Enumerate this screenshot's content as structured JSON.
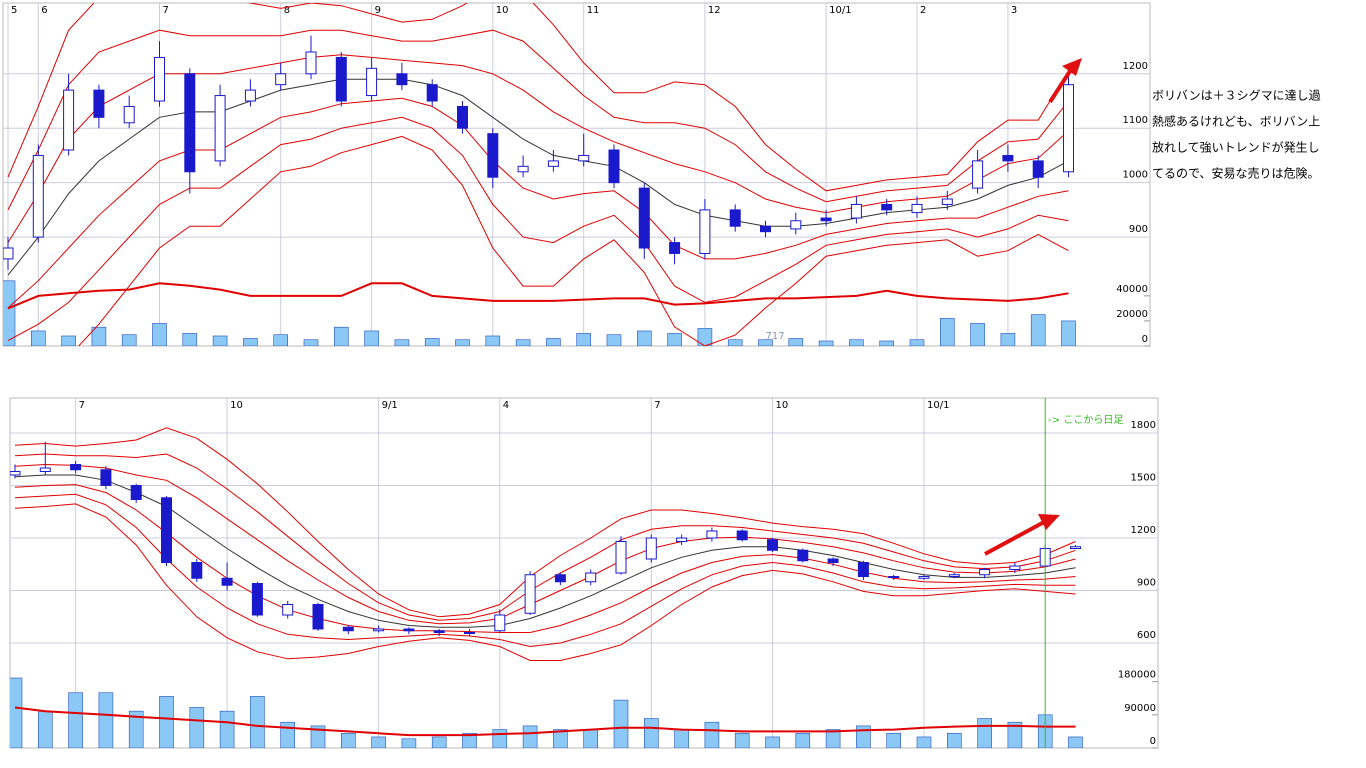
{
  "chart_data": [
    {
      "type": "candlestick",
      "categories": [
        "5",
        "6",
        null,
        null,
        null,
        "7",
        null,
        null,
        null,
        "8",
        null,
        null,
        "9",
        null,
        null,
        null,
        "10",
        null,
        null,
        "11",
        null,
        null,
        null,
        "12",
        null,
        null,
        null,
        "10/1",
        null,
        null,
        "2",
        null,
        null,
        "3",
        null,
        null
      ],
      "ylim": [
        700,
        1330
      ],
      "yticks": [
        900,
        1000,
        1100,
        1200
      ],
      "y2lim": [
        0,
        273600
      ],
      "y2ticks": [
        0,
        20000,
        40000
      ],
      "grid": true,
      "ohlc": {
        "up_color": "#ffffff",
        "down_color": "#1a1acc",
        "edge_color": "#1a1acc",
        "open": [
          860,
          900,
          1060,
          1170,
          1110,
          1150,
          1200,
          1040,
          1150,
          1180,
          1200,
          1230,
          1160,
          1200,
          1180,
          1140,
          1090,
          1020,
          1030,
          1040,
          1060,
          990,
          890,
          870,
          950,
          920,
          915,
          935,
          935,
          960,
          945,
          960,
          990,
          1050,
          1040,
          1020
        ],
        "high": [
          900,
          1070,
          1200,
          1180,
          1160,
          1260,
          1210,
          1180,
          1190,
          1220,
          1270,
          1240,
          1230,
          1220,
          1190,
          1150,
          1100,
          1050,
          1060,
          1090,
          1070,
          1000,
          900,
          970,
          960,
          930,
          945,
          950,
          975,
          970,
          975,
          985,
          1060,
          1070,
          1050,
          1200
        ],
        "low": [
          840,
          890,
          1050,
          1100,
          1100,
          1140,
          980,
          1030,
          1140,
          1170,
          1190,
          1140,
          1150,
          1170,
          1140,
          1090,
          990,
          1010,
          1020,
          1030,
          990,
          860,
          850,
          860,
          910,
          900,
          905,
          920,
          925,
          940,
          935,
          950,
          980,
          1020,
          990,
          1010
        ],
        "close": [
          880,
          1050,
          1170,
          1120,
          1140,
          1230,
          1020,
          1160,
          1170,
          1200,
          1240,
          1150,
          1210,
          1180,
          1150,
          1100,
          1010,
          1030,
          1040,
          1050,
          1000,
          880,
          870,
          950,
          920,
          910,
          930,
          930,
          960,
          950,
          960,
          970,
          1040,
          1040,
          1010,
          1180
        ]
      },
      "bands": [
        {
          "color": "#333333",
          "values": [
            830,
            900,
            980,
            1040,
            1080,
            1120,
            1130,
            1130,
            1150,
            1170,
            1180,
            1190,
            1190,
            1190,
            1180,
            1160,
            1120,
            1080,
            1050,
            1040,
            1030,
            1000,
            960,
            940,
            930,
            920,
            920,
            925,
            935,
            945,
            950,
            955,
            970,
            995,
            1010,
            1040
          ]
        },
        {
          "color": "#e00000",
          "values": [
            890,
            980,
            1080,
            1140,
            1170,
            1200,
            1200,
            1200,
            1210,
            1220,
            1230,
            1235,
            1230,
            1225,
            1220,
            1215,
            1200,
            1170,
            1130,
            1100,
            1075,
            1055,
            1035,
            1020,
            1000,
            970,
            955,
            945,
            955,
            965,
            970,
            975,
            1005,
            1035,
            1045,
            1095
          ]
        },
        {
          "color": "#e00000",
          "values": [
            950,
            1060,
            1180,
            1240,
            1260,
            1280,
            1270,
            1270,
            1270,
            1270,
            1280,
            1280,
            1270,
            1260,
            1260,
            1270,
            1280,
            1260,
            1210,
            1160,
            1120,
            1110,
            1110,
            1100,
            1070,
            1020,
            990,
            965,
            975,
            985,
            990,
            995,
            1040,
            1075,
            1080,
            1150
          ]
        },
        {
          "color": "#e00000",
          "values": [
            1010,
            1140,
            1280,
            1340,
            1350,
            1360,
            1340,
            1340,
            1330,
            1320,
            1330,
            1325,
            1310,
            1295,
            1300,
            1325,
            1360,
            1350,
            1290,
            1220,
            1165,
            1165,
            1185,
            1180,
            1140,
            1070,
            1025,
            985,
            995,
            1005,
            1010,
            1015,
            1075,
            1115,
            1115,
            1205
          ]
        },
        {
          "color": "#e00000",
          "values": [
            770,
            820,
            880,
            940,
            990,
            1040,
            1060,
            1060,
            1090,
            1120,
            1130,
            1145,
            1150,
            1155,
            1140,
            1105,
            1040,
            990,
            970,
            980,
            985,
            945,
            885,
            860,
            860,
            870,
            885,
            905,
            915,
            925,
            930,
            935,
            935,
            955,
            975,
            985
          ]
        },
        {
          "color": "#e00000",
          "values": [
            710,
            740,
            780,
            840,
            900,
            960,
            990,
            990,
            1030,
            1070,
            1080,
            1100,
            1110,
            1120,
            1100,
            1050,
            960,
            900,
            890,
            920,
            940,
            890,
            810,
            780,
            790,
            820,
            850,
            885,
            895,
            905,
            910,
            915,
            900,
            915,
            940,
            930
          ]
        },
        {
          "color": "#e00000",
          "values": [
            650,
            660,
            680,
            740,
            810,
            880,
            920,
            920,
            970,
            1020,
            1030,
            1055,
            1070,
            1085,
            1060,
            995,
            880,
            810,
            810,
            860,
            895,
            835,
            735,
            700,
            720,
            770,
            815,
            865,
            875,
            885,
            890,
            895,
            865,
            875,
            905,
            875
          ]
        }
      ],
      "volume": {
        "color": "#8cc8f5",
        "values": [
          52000,
          12000,
          8000,
          15000,
          9000,
          18000,
          10000,
          8000,
          6000,
          9000,
          5000,
          15000,
          12000,
          5000,
          6000,
          5000,
          8000,
          5000,
          6000,
          10000,
          9000,
          12000,
          10000,
          14000,
          5000,
          5000,
          6000,
          4000,
          5000,
          4000,
          5000,
          22000,
          18000,
          10000,
          25000,
          20000
        ]
      },
      "volume_ma": {
        "color": "#e00000",
        "values": [
          30000,
          40000,
          42000,
          44000,
          45000,
          50000,
          48000,
          45000,
          40000,
          40000,
          40000,
          40000,
          50000,
          50000,
          40000,
          38000,
          36000,
          36000,
          36000,
          37000,
          38000,
          38000,
          33000,
          34000,
          36000,
          38000,
          38000,
          39000,
          40000,
          44000,
          40000,
          38000,
          37000,
          36000,
          38000,
          42000
        ]
      },
      "annotations": [
        {
          "text": "717",
          "x": 25
        }
      ],
      "comment": [
        "ボリバンは＋３シグマに達し過",
        "熱感あるけれども、ボリバン上",
        "放れして強いトレンドが発生し",
        "てるので、安易な売りは危険。"
      ]
    },
    {
      "type": "candlestick",
      "categories": [
        null,
        null,
        "7",
        null,
        null,
        null,
        null,
        "10",
        null,
        null,
        null,
        null,
        "9/1",
        null,
        null,
        null,
        "4",
        null,
        null,
        null,
        null,
        "7",
        null,
        null,
        null,
        "10",
        null,
        null,
        null,
        null,
        "10/1",
        null,
        null,
        null,
        null,
        null
      ],
      "ylim": [
        0,
        2000
      ],
      "yticks": [
        600,
        900,
        1200,
        1500,
        1800
      ],
      "y2lim": [
        0,
        950000
      ],
      "y2ticks": [
        0,
        90000,
        180000
      ],
      "grid": true,
      "ohlc": {
        "up_color": "#ffffff",
        "down_color": "#1a1acc",
        "edge_color": "#1a1acc",
        "open": [
          1560,
          1580,
          1620,
          1590,
          1500,
          1430,
          1060,
          970,
          940,
          760,
          820,
          690,
          670,
          680,
          670,
          660,
          670,
          770,
          990,
          950,
          1000,
          1080,
          1180,
          1200,
          1240,
          1190,
          1130,
          1080,
          1060,
          980,
          970,
          980,
          990,
          1020,
          1040,
          1140
        ],
        "high": [
          1620,
          1750,
          1640,
          1610,
          1510,
          1440,
          1080,
          1060,
          950,
          840,
          830,
          700,
          700,
          690,
          680,
          680,
          790,
          1010,
          1000,
          1020,
          1210,
          1220,
          1220,
          1260,
          1250,
          1200,
          1140,
          1090,
          1070,
          990,
          990,
          1000,
          1030,
          1060,
          1160,
          1160
        ],
        "low": [
          1540,
          1560,
          1570,
          1480,
          1400,
          1040,
          950,
          900,
          750,
          740,
          670,
          650,
          660,
          650,
          640,
          640,
          660,
          760,
          930,
          930,
          990,
          1060,
          1160,
          1180,
          1180,
          1120,
          1060,
          1040,
          960,
          960,
          960,
          970,
          970,
          1000,
          1030,
          1140
        ],
        "close": [
          1580,
          1600,
          1590,
          1500,
          1420,
          1060,
          970,
          930,
          760,
          820,
          680,
          670,
          680,
          670,
          660,
          660,
          760,
          990,
          950,
          1000,
          1180,
          1200,
          1200,
          1240,
          1190,
          1130,
          1070,
          1060,
          980,
          980,
          980,
          990,
          1020,
          1040,
          1140,
          1150
        ]
      },
      "bands": [
        {
          "color": "#333333",
          "values": [
            1550,
            1560,
            1560,
            1530,
            1460,
            1380,
            1260,
            1140,
            1030,
            930,
            850,
            780,
            730,
            700,
            690,
            690,
            700,
            740,
            800,
            870,
            950,
            1030,
            1090,
            1130,
            1150,
            1150,
            1130,
            1100,
            1060,
            1020,
            990,
            975,
            975,
            985,
            1000,
            1030
          ]
        },
        {
          "color": "#e00000",
          "values": [
            1610,
            1620,
            1615,
            1600,
            1560,
            1530,
            1430,
            1310,
            1190,
            1070,
            960,
            860,
            780,
            730,
            710,
            715,
            740,
            820,
            900,
            980,
            1070,
            1140,
            1180,
            1200,
            1205,
            1195,
            1175,
            1150,
            1115,
            1070,
            1030,
            1005,
            1000,
            1010,
            1035,
            1080
          ]
        },
        {
          "color": "#e00000",
          "values": [
            1670,
            1680,
            1670,
            1670,
            1660,
            1680,
            1600,
            1480,
            1350,
            1210,
            1070,
            940,
            830,
            760,
            730,
            740,
            780,
            900,
            1000,
            1090,
            1190,
            1250,
            1270,
            1270,
            1260,
            1240,
            1220,
            1200,
            1170,
            1120,
            1070,
            1035,
            1025,
            1035,
            1070,
            1130
          ]
        },
        {
          "color": "#e00000",
          "values": [
            1730,
            1740,
            1725,
            1740,
            1760,
            1830,
            1770,
            1650,
            1510,
            1350,
            1180,
            1020,
            880,
            790,
            750,
            765,
            820,
            980,
            1100,
            1200,
            1310,
            1360,
            1360,
            1340,
            1315,
            1285,
            1265,
            1250,
            1225,
            1170,
            1110,
            1065,
            1050,
            1060,
            1105,
            1180
          ]
        },
        {
          "color": "#e00000",
          "values": [
            1490,
            1500,
            1505,
            1460,
            1360,
            1230,
            1090,
            970,
            870,
            790,
            740,
            700,
            680,
            670,
            670,
            665,
            660,
            660,
            700,
            760,
            830,
            920,
            1000,
            1060,
            1095,
            1105,
            1085,
            1050,
            1005,
            970,
            950,
            945,
            950,
            960,
            965,
            980
          ]
        },
        {
          "color": "#e00000",
          "values": [
            1430,
            1440,
            1450,
            1390,
            1260,
            1080,
            920,
            800,
            710,
            650,
            630,
            620,
            630,
            640,
            650,
            640,
            620,
            580,
            600,
            650,
            710,
            810,
            910,
            990,
            1040,
            1060,
            1040,
            1000,
            950,
            920,
            910,
            915,
            925,
            935,
            930,
            930
          ]
        },
        {
          "color": "#e00000",
          "values": [
            1370,
            1380,
            1395,
            1320,
            1160,
            930,
            750,
            630,
            550,
            510,
            520,
            540,
            580,
            610,
            630,
            615,
            580,
            500,
            500,
            540,
            590,
            700,
            820,
            920,
            985,
            1015,
            995,
            950,
            895,
            870,
            870,
            885,
            900,
            910,
            895,
            880
          ]
        }
      ],
      "volume": {
        "color": "#8cc8f5",
        "values": [
          190000,
          100000,
          150000,
          150000,
          100000,
          140000,
          110000,
          100000,
          140000,
          70000,
          60000,
          40000,
          30000,
          25000,
          30000,
          40000,
          50000,
          60000,
          50000,
          50000,
          130000,
          80000,
          50000,
          70000,
          40000,
          30000,
          40000,
          50000,
          60000,
          40000,
          30000,
          40000,
          80000,
          70000,
          90000,
          30000
        ]
      },
      "volume_ma": {
        "color": "#e00000",
        "values": [
          110000,
          100000,
          95000,
          90000,
          85000,
          80000,
          75000,
          70000,
          60000,
          55000,
          50000,
          45000,
          40000,
          35000,
          35000,
          35000,
          38000,
          40000,
          45000,
          50000,
          55000,
          55000,
          50000,
          48000,
          45000,
          45000,
          45000,
          45000,
          48000,
          50000,
          55000,
          58000,
          60000,
          60000,
          58000,
          58000
        ]
      },
      "annotations": [
        {
          "text": "-> ここから日足",
          "x": 34,
          "color": "#33bb22"
        }
      ]
    }
  ]
}
